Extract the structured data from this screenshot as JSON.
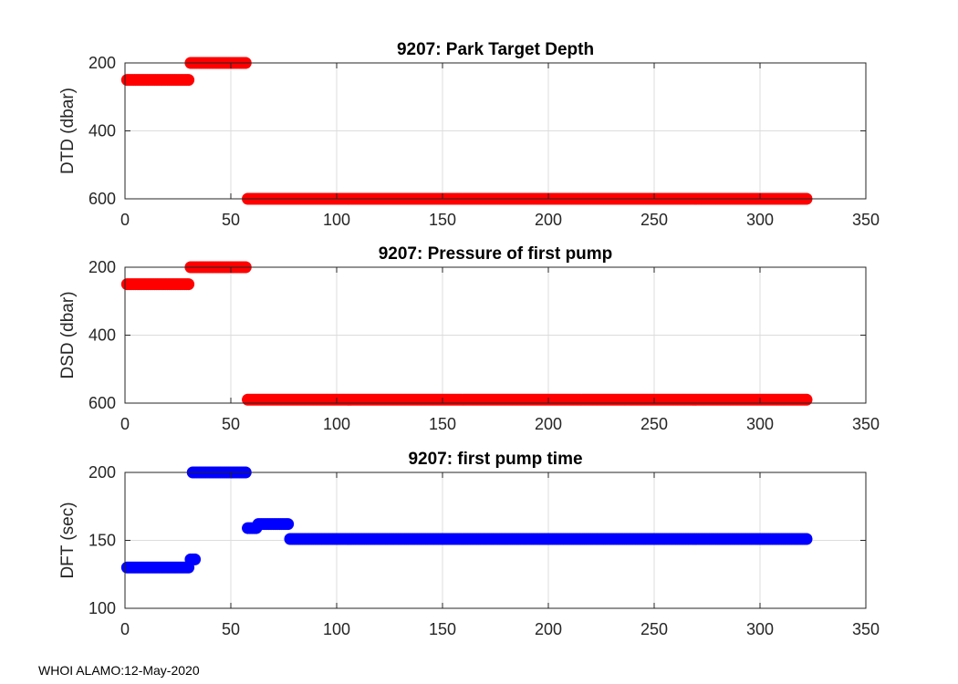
{
  "footer": "WHOI ALAMO:12-May-2020",
  "chart_data": [
    {
      "type": "scatter",
      "title": "9207: Park Target Depth",
      "xlabel": "",
      "ylabel": "DTD (dbar)",
      "xlim": [
        0,
        350
      ],
      "ylim": [
        200,
        600
      ],
      "y_reversed": true,
      "grid": true,
      "xticks": [
        0,
        50,
        100,
        150,
        200,
        250,
        300,
        350
      ],
      "yticks": [
        200,
        400,
        600
      ],
      "color": "#ff0000",
      "segments": [
        {
          "x_start": 1,
          "x_end": 30,
          "y": 250
        },
        {
          "x_start": 31,
          "x_end": 57,
          "y": 200
        },
        {
          "x_start": 58,
          "x_end": 322,
          "y": 600
        }
      ]
    },
    {
      "type": "scatter",
      "title": "9207: Pressure of first pump",
      "xlabel": "",
      "ylabel": "DSD (dbar)",
      "xlim": [
        0,
        350
      ],
      "ylim": [
        200,
        600
      ],
      "y_reversed": true,
      "grid": true,
      "xticks": [
        0,
        50,
        100,
        150,
        200,
        250,
        300,
        350
      ],
      "yticks": [
        200,
        400,
        600
      ],
      "color": "#ff0000",
      "segments": [
        {
          "x_start": 1,
          "x_end": 30,
          "y": 250
        },
        {
          "x_start": 31,
          "x_end": 57,
          "y": 200
        },
        {
          "x_start": 58,
          "x_end": 322,
          "y": 590
        }
      ]
    },
    {
      "type": "scatter",
      "title": "9207: first pump time",
      "xlabel": "",
      "ylabel": "DFT (sec)",
      "xlim": [
        0,
        350
      ],
      "ylim": [
        100,
        200
      ],
      "y_reversed": false,
      "grid": true,
      "xticks": [
        0,
        50,
        100,
        150,
        200,
        250,
        300,
        350
      ],
      "yticks": [
        100,
        150,
        200
      ],
      "color": "#0000ff",
      "segments": [
        {
          "x_start": 1,
          "x_end": 30,
          "y": 130
        },
        {
          "x_start": 31,
          "x_end": 33,
          "y": 136
        },
        {
          "x_start": 32,
          "x_end": 57,
          "y": 200
        },
        {
          "x_start": 58,
          "x_end": 62,
          "y": 159
        },
        {
          "x_start": 63,
          "x_end": 77,
          "y": 162
        },
        {
          "x_start": 78,
          "x_end": 322,
          "y": 151
        }
      ]
    }
  ]
}
